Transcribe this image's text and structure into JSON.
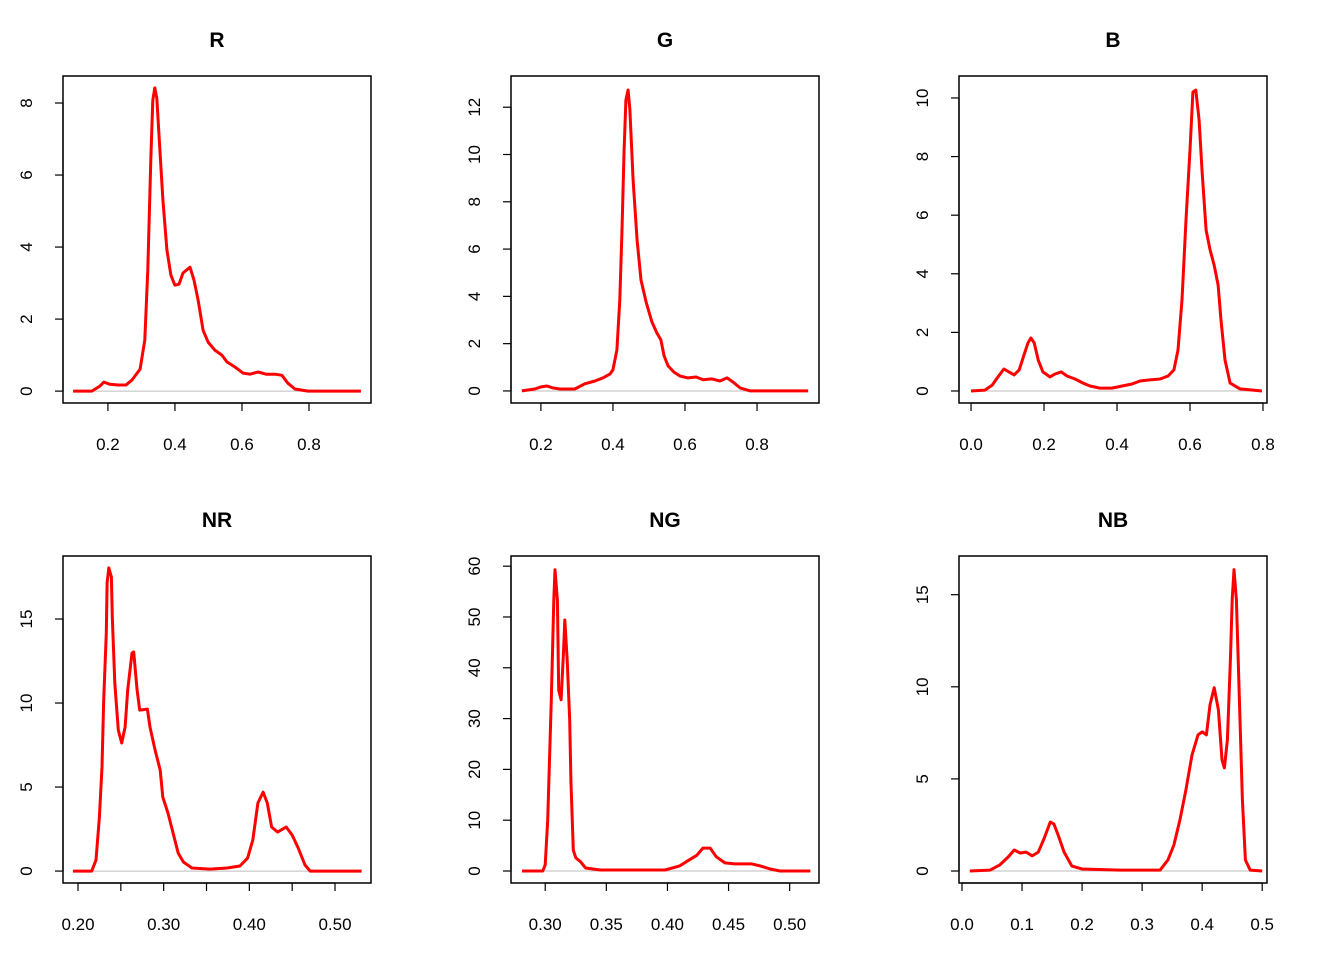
{
  "chart_data": [
    {
      "type": "line",
      "title": "R",
      "xlabel": "",
      "ylabel": "",
      "xlim": [
        0.066,
        0.985
      ],
      "ylim": [
        -0.33,
        8.75
      ],
      "xticks": [
        0.2,
        0.4,
        0.6,
        0.8
      ],
      "xtick_labels": [
        "0.2",
        "0.4",
        "0.6",
        "0.8"
      ],
      "yticks": [
        0,
        2,
        4,
        6,
        8
      ],
      "ytick_labels": [
        "0",
        "2",
        "4",
        "6",
        "8"
      ],
      "zero_line": true,
      "line_color": "#ff0000",
      "grid": false,
      "x": [
        0.096,
        0.152,
        0.176,
        0.188,
        0.206,
        0.23,
        0.254,
        0.272,
        0.296,
        0.31,
        0.319,
        0.328,
        0.334,
        0.34,
        0.346,
        0.355,
        0.364,
        0.376,
        0.388,
        0.4,
        0.412,
        0.424,
        0.445,
        0.457,
        0.469,
        0.484,
        0.499,
        0.519,
        0.54,
        0.555,
        0.579,
        0.603,
        0.624,
        0.648,
        0.672,
        0.699,
        0.719,
        0.737,
        0.758,
        0.797,
        0.955
      ],
      "y": [
        0,
        0,
        0.14,
        0.25,
        0.19,
        0.17,
        0.17,
        0.31,
        0.61,
        1.42,
        3.36,
        6.42,
        8.08,
        8.42,
        8.14,
        6.69,
        5.31,
        3.92,
        3.22,
        2.94,
        2.97,
        3.28,
        3.44,
        3.08,
        2.53,
        1.69,
        1.36,
        1.14,
        1.0,
        0.81,
        0.67,
        0.5,
        0.47,
        0.53,
        0.47,
        0.47,
        0.44,
        0.22,
        0.06,
        0,
        0
      ]
    },
    {
      "type": "line",
      "title": "G",
      "xlabel": "",
      "ylabel": "",
      "xlim": [
        0.117,
        0.972
      ],
      "ylim": [
        -0.51,
        13.32
      ],
      "xticks": [
        0.2,
        0.4,
        0.6,
        0.8
      ],
      "xtick_labels": [
        "0.2",
        "0.4",
        "0.6",
        "0.8"
      ],
      "yticks": [
        0,
        2,
        4,
        6,
        8,
        10,
        12
      ],
      "ytick_labels": [
        "0",
        "2",
        "4",
        "6",
        "8",
        "10",
        "12"
      ],
      "zero_line": true,
      "line_color": "#ff0000",
      "grid": false,
      "x": [
        0.147,
        0.183,
        0.2,
        0.217,
        0.233,
        0.253,
        0.294,
        0.322,
        0.35,
        0.372,
        0.392,
        0.4,
        0.411,
        0.419,
        0.425,
        0.431,
        0.436,
        0.442,
        0.447,
        0.456,
        0.467,
        0.478,
        0.492,
        0.508,
        0.522,
        0.533,
        0.542,
        0.553,
        0.569,
        0.586,
        0.608,
        0.631,
        0.65,
        0.675,
        0.697,
        0.717,
        0.733,
        0.753,
        0.781,
        0.942
      ],
      "y": [
        0,
        0.08,
        0.17,
        0.21,
        0.13,
        0.08,
        0.08,
        0.3,
        0.42,
        0.55,
        0.72,
        0.89,
        1.73,
        3.85,
        6.81,
        10.19,
        12.3,
        12.73,
        11.88,
        8.92,
        6.38,
        4.69,
        3.76,
        2.92,
        2.45,
        2.16,
        1.48,
        1.06,
        0.8,
        0.63,
        0.55,
        0.59,
        0.47,
        0.51,
        0.42,
        0.55,
        0.38,
        0.13,
        0,
        0
      ]
    },
    {
      "type": "line",
      "title": "B",
      "xlabel": "",
      "ylabel": "",
      "xlim": [
        -0.033,
        0.811
      ],
      "ylim": [
        -0.41,
        10.75
      ],
      "xticks": [
        0,
        0.2,
        0.4,
        0.6,
        0.8
      ],
      "xtick_labels": [
        "0.0",
        "0.2",
        "0.4",
        "0.6",
        "0.8"
      ],
      "yticks": [
        0,
        2,
        4,
        6,
        8,
        10
      ],
      "ytick_labels": [
        "0",
        "2",
        "4",
        "6",
        "8",
        "10"
      ],
      "zero_line": true,
      "line_color": "#ff0000",
      "grid": false,
      "x": [
        0,
        0.038,
        0.058,
        0.074,
        0.09,
        0.104,
        0.118,
        0.132,
        0.145,
        0.156,
        0.164,
        0.173,
        0.184,
        0.197,
        0.216,
        0.23,
        0.247,
        0.263,
        0.285,
        0.307,
        0.326,
        0.353,
        0.386,
        0.414,
        0.441,
        0.463,
        0.49,
        0.518,
        0.54,
        0.556,
        0.567,
        0.578,
        0.589,
        0.6,
        0.608,
        0.616,
        0.625,
        0.633,
        0.644,
        0.655,
        0.666,
        0.677,
        0.685,
        0.696,
        0.71,
        0.737,
        0.797
      ],
      "y": [
        0,
        0.03,
        0.2,
        0.48,
        0.75,
        0.65,
        0.55,
        0.72,
        1.23,
        1.64,
        1.81,
        1.64,
        1.06,
        0.65,
        0.48,
        0.58,
        0.65,
        0.51,
        0.41,
        0.27,
        0.17,
        0.1,
        0.1,
        0.17,
        0.24,
        0.34,
        0.38,
        0.41,
        0.51,
        0.72,
        1.4,
        3.11,
        5.84,
        8.23,
        10.2,
        10.27,
        9.25,
        7.54,
        5.49,
        4.81,
        4.3,
        3.62,
        2.42,
        1.06,
        0.27,
        0.07,
        0
      ]
    },
    {
      "type": "line",
      "title": "NR",
      "xlabel": "",
      "ylabel": "",
      "xlim": [
        0.1825,
        0.542
      ],
      "ylim": [
        -0.71,
        18.75
      ],
      "xticks": [
        0.2,
        0.25,
        0.3,
        0.35,
        0.4,
        0.45,
        0.5
      ],
      "xtick_labels": [
        "0.20",
        "",
        "0.30",
        "",
        "0.40",
        "",
        "0.50"
      ],
      "yticks": [
        0,
        5,
        10,
        15
      ],
      "ytick_labels": [
        "0",
        "5",
        "10",
        "15"
      ],
      "zero_line": true,
      "line_color": "#ff0000",
      "grid": false,
      "x": [
        0.194,
        0.216,
        0.221,
        0.225,
        0.228,
        0.23,
        0.233,
        0.234,
        0.236,
        0.239,
        0.24,
        0.243,
        0.247,
        0.251,
        0.255,
        0.258,
        0.263,
        0.265,
        0.269,
        0.272,
        0.281,
        0.284,
        0.29,
        0.296,
        0.299,
        0.305,
        0.311,
        0.317,
        0.323,
        0.333,
        0.354,
        0.374,
        0.389,
        0.398,
        0.404,
        0.41,
        0.416,
        0.421,
        0.426,
        0.433,
        0.443,
        0.45,
        0.457,
        0.465,
        0.471,
        0.531
      ],
      "y": [
        0,
        0,
        0.65,
        3.21,
        6.19,
        10.18,
        14.17,
        17.14,
        18.04,
        17.5,
        15.12,
        11.19,
        8.39,
        7.62,
        8.57,
        10.77,
        12.98,
        13.04,
        10.77,
        9.58,
        9.64,
        8.57,
        7.2,
        6.01,
        4.4,
        3.45,
        2.26,
        1.07,
        0.54,
        0.18,
        0.12,
        0.18,
        0.3,
        0.77,
        1.85,
        4.05,
        4.7,
        4.05,
        2.62,
        2.32,
        2.62,
        2.14,
        1.37,
        0.36,
        0,
        0
      ]
    },
    {
      "type": "line",
      "title": "NG",
      "xlabel": "",
      "ylabel": "",
      "xlim": [
        0.272,
        0.524
      ],
      "ylim": [
        -2.36,
        62.0
      ],
      "xticks": [
        0.3,
        0.35,
        0.4,
        0.45,
        0.5
      ],
      "xtick_labels": [
        "0.30",
        "0.35",
        "0.40",
        "0.45",
        "0.50"
      ],
      "yticks": [
        0,
        10,
        20,
        30,
        40,
        50,
        60
      ],
      "ytick_labels": [
        "0",
        "10",
        "20",
        "30",
        "40",
        "50",
        "60"
      ],
      "zero_line": true,
      "line_color": "#ff0000",
      "grid": false,
      "x": [
        0.281,
        0.298,
        0.3,
        0.302,
        0.305,
        0.307,
        0.308,
        0.31,
        0.311,
        0.313,
        0.315,
        0.316,
        0.318,
        0.32,
        0.321,
        0.323,
        0.325,
        0.329,
        0.333,
        0.345,
        0.378,
        0.398,
        0.41,
        0.418,
        0.424,
        0.429,
        0.435,
        0.44,
        0.447,
        0.455,
        0.463,
        0.469,
        0.476,
        0.484,
        0.492,
        0.517
      ],
      "y": [
        0,
        0,
        1.2,
        10,
        33.7,
        53.3,
        59.3,
        53.3,
        35.6,
        33.7,
        43.5,
        49.4,
        41.5,
        29.7,
        17.9,
        4.1,
        2.6,
        1.8,
        0.6,
        0.2,
        0.2,
        0.2,
        1.0,
        2.2,
        3.1,
        4.5,
        4.5,
        2.8,
        1.6,
        1.4,
        1.4,
        1.4,
        1.0,
        0.4,
        0,
        0
      ]
    },
    {
      "type": "line",
      "title": "NB",
      "xlabel": "",
      "ylabel": "",
      "xlim": [
        -0.005,
        0.508
      ],
      "ylim": [
        -0.65,
        17.1
      ],
      "xticks": [
        0,
        0.1,
        0.2,
        0.3,
        0.4,
        0.5
      ],
      "xtick_labels": [
        "0.0",
        "0.1",
        "0.2",
        "0.3",
        "0.4",
        "0.5"
      ],
      "yticks": [
        0,
        5,
        10,
        15
      ],
      "ytick_labels": [
        "0",
        "5",
        "10",
        "15"
      ],
      "zero_line": true,
      "line_color": "#ff0000",
      "grid": false,
      "x": [
        0.013,
        0.047,
        0.063,
        0.077,
        0.087,
        0.097,
        0.107,
        0.117,
        0.127,
        0.137,
        0.147,
        0.153,
        0.16,
        0.17,
        0.183,
        0.2,
        0.263,
        0.33,
        0.343,
        0.353,
        0.363,
        0.373,
        0.383,
        0.393,
        0.4,
        0.407,
        0.413,
        0.42,
        0.427,
        0.433,
        0.437,
        0.442,
        0.447,
        0.45,
        0.453,
        0.457,
        0.462,
        0.467,
        0.472,
        0.48,
        0.5
      ],
      "y": [
        0,
        0.05,
        0.33,
        0.76,
        1.14,
        0.98,
        1.03,
        0.82,
        1.03,
        1.79,
        2.66,
        2.55,
        1.96,
        1.03,
        0.27,
        0.11,
        0.05,
        0.05,
        0.6,
        1.41,
        2.77,
        4.4,
        6.3,
        7.39,
        7.55,
        7.39,
        9.02,
        9.95,
        8.75,
        6.03,
        5.6,
        7.12,
        11.47,
        14.73,
        16.36,
        14.73,
        9.29,
        3.86,
        0.6,
        0.05,
        0
      ]
    }
  ]
}
